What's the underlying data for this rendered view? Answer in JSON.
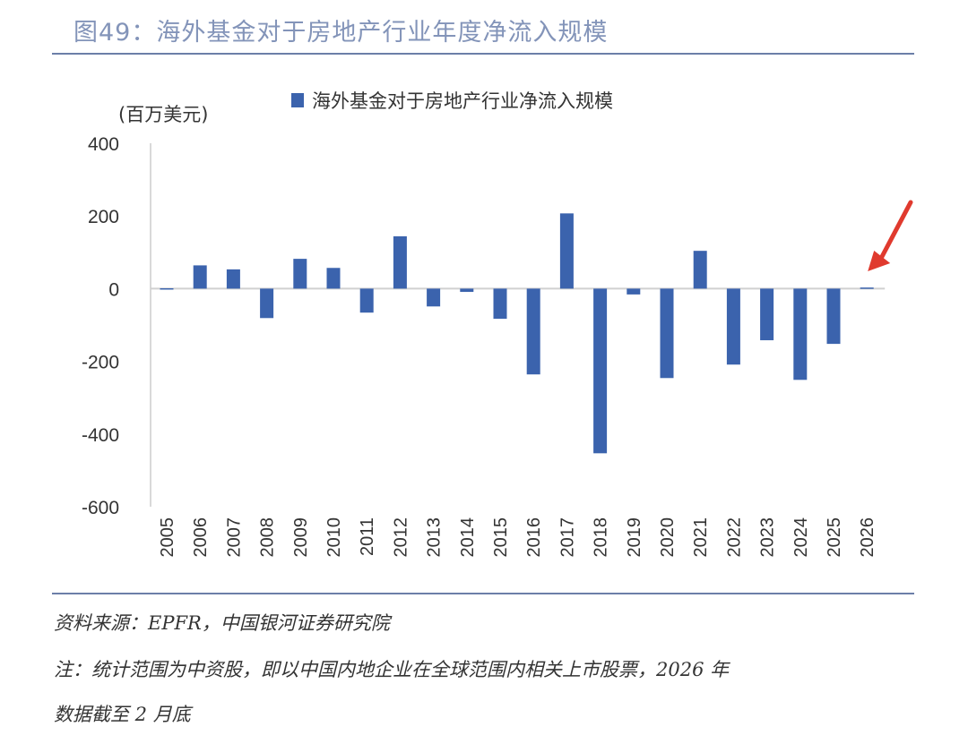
{
  "header": {
    "title": "图49：海外基金对于房地产行业年度净流入规模"
  },
  "chart_data": {
    "type": "bar",
    "title": "",
    "ylabel": "(百万美元)",
    "xlabel": "",
    "ylim": [
      -600,
      400
    ],
    "yticks": [
      400,
      200,
      0,
      -200,
      -400,
      -600
    ],
    "grid": false,
    "legend_placement": "top-center",
    "categories": [
      "2005",
      "2006",
      "2007",
      "2008",
      "2009",
      "2010",
      "2011",
      "2012",
      "2013",
      "2014",
      "2015",
      "2016",
      "2017",
      "2018",
      "2019",
      "2020",
      "2021",
      "2022",
      "2023",
      "2024",
      "2025",
      "2026"
    ],
    "series": [
      {
        "name": "海外基金对于房地产行业净流入规模",
        "color": "#3b63ad",
        "values": [
          1,
          64,
          53,
          -81,
          82,
          57,
          -66,
          144,
          -49,
          -9,
          -83,
          -236,
          207,
          -453,
          -16,
          -246,
          104,
          -209,
          -142,
          -251,
          -152,
          3
        ]
      }
    ],
    "annotation": {
      "type": "arrow",
      "points_to": "2026",
      "color": "#e03a2e"
    }
  },
  "footer": {
    "source": "资料来源：EPFR，中国银河证券研究院",
    "note_line1": "注：统计范围为中资股，即以中国内地企业在全球范围内相关上市股票，2026 年",
    "note_line2": "数据截至 2 月底"
  }
}
